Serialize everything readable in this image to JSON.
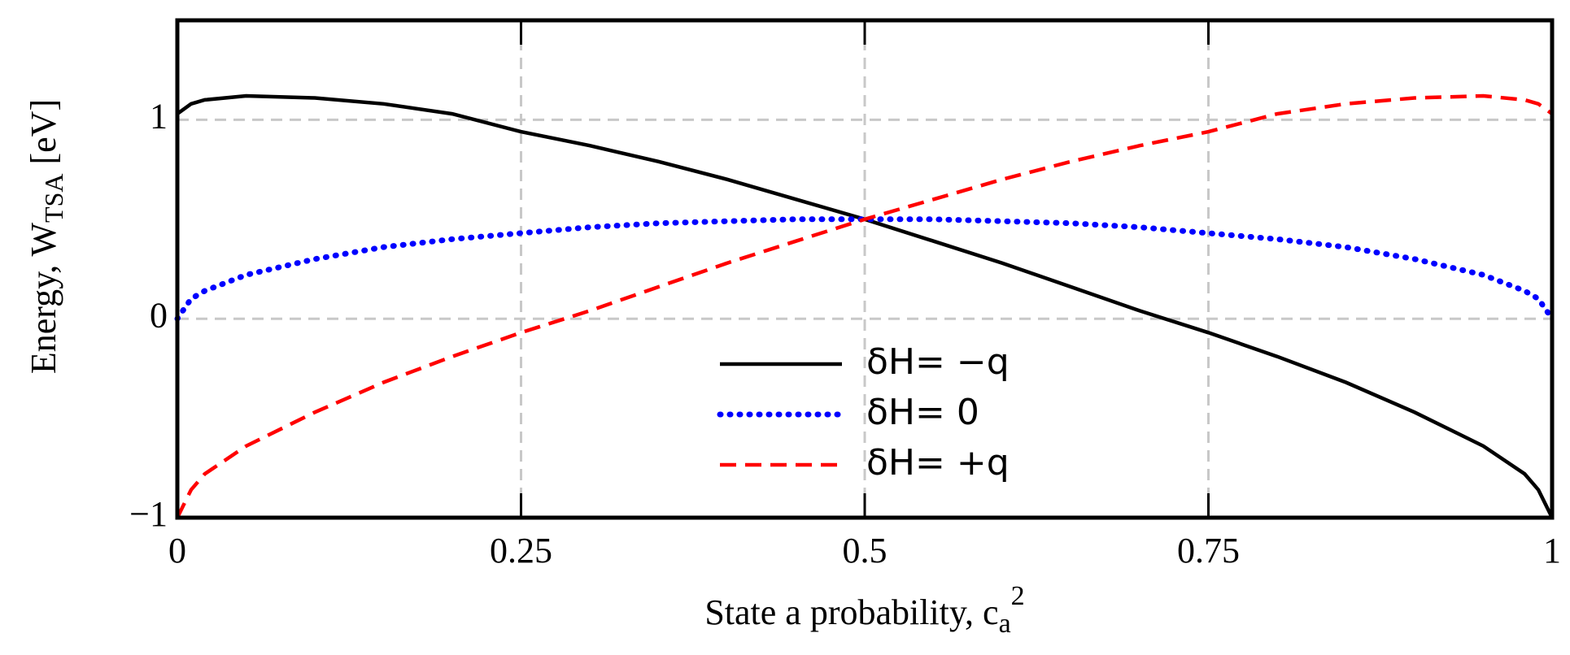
{
  "chart_data": {
    "type": "line",
    "ylabel": [
      "Energy, W",
      "TSA",
      " [eV]"
    ],
    "xlabel": [
      "State a probability, c",
      "a",
      "2"
    ],
    "x": [
      0,
      0.01,
      0.02,
      0.05,
      0.1,
      0.15,
      0.2,
      0.25,
      0.3,
      0.35,
      0.4,
      0.45,
      0.5,
      0.55,
      0.6,
      0.65,
      0.7,
      0.75,
      0.8,
      0.85,
      0.9,
      0.95,
      0.98,
      0.99,
      1
    ],
    "series": [
      {
        "name": "δH= −q",
        "color": "#000000",
        "style": "solid",
        "values": [
          1.03,
          1.08,
          1.1,
          1.12,
          1.11,
          1.08,
          1.03,
          0.94,
          0.87,
          0.79,
          0.7,
          0.6,
          0.5,
          0.39,
          0.28,
          0.16,
          0.04,
          -0.07,
          -0.19,
          -0.32,
          -0.47,
          -0.64,
          -0.78,
          -0.86,
          -1
        ]
      },
      {
        "name": "δH= 0",
        "color": "#0000ff",
        "style": "dotted",
        "values": [
          0,
          0.1,
          0.14,
          0.22,
          0.3,
          0.36,
          0.4,
          0.43,
          0.46,
          0.48,
          0.49,
          0.5,
          0.5,
          0.5,
          0.49,
          0.48,
          0.46,
          0.43,
          0.4,
          0.36,
          0.3,
          0.22,
          0.14,
          0.1,
          0
        ]
      },
      {
        "name": "δH= +q",
        "color": "#ff0000",
        "style": "dashed",
        "values": [
          -1,
          -0.86,
          -0.78,
          -0.64,
          -0.47,
          -0.32,
          -0.19,
          -0.07,
          0.04,
          0.16,
          0.28,
          0.39,
          0.5,
          0.6,
          0.7,
          0.79,
          0.87,
          0.94,
          1.03,
          1.08,
          1.11,
          1.12,
          1.1,
          1.08,
          1.03
        ]
      }
    ],
    "xlim": [
      0,
      1
    ],
    "xticks": [
      0,
      0.25,
      0.5,
      0.75,
      1
    ],
    "ylim": [
      -1,
      1.5
    ],
    "yticks": [
      {
        "value": -1,
        "label": "−1"
      },
      0,
      1
    ],
    "grid": true,
    "legend": "lower center"
  }
}
